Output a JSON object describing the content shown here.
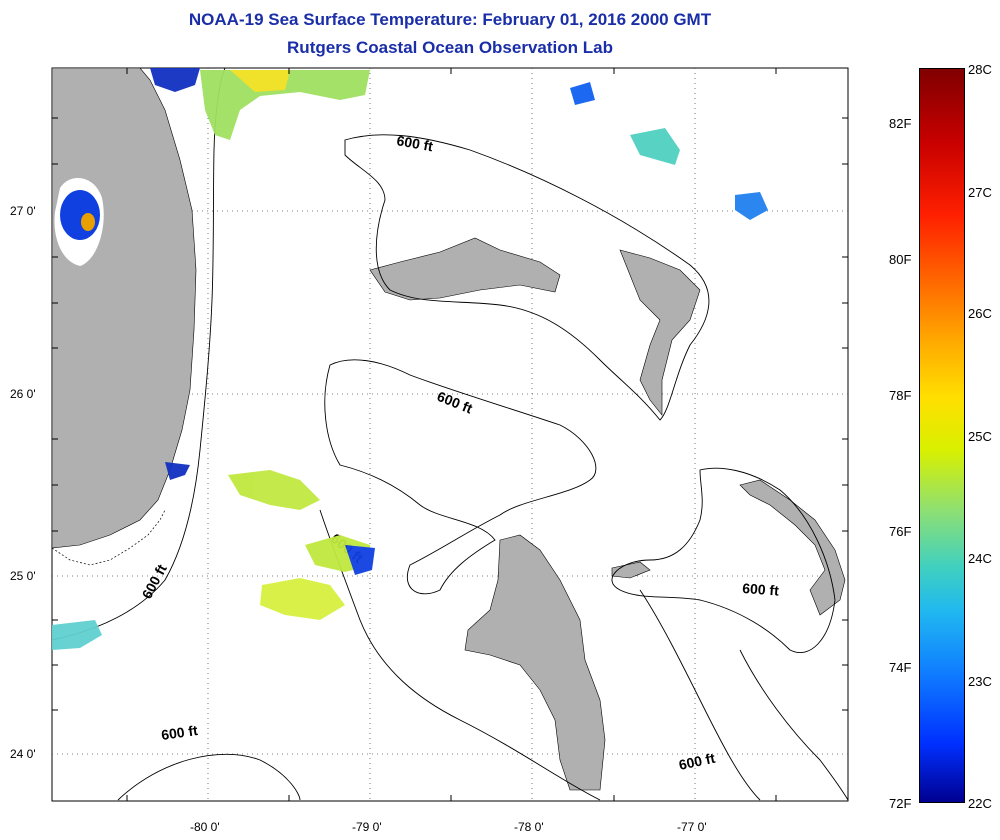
{
  "title": {
    "line1": "NOAA-19 Sea Surface Temperature:  February 01, 2016 2000 GMT",
    "line2": "Rutgers Coastal Ocean Observation Lab"
  },
  "map": {
    "x_ticks": [
      "-80 0'",
      "-79 0'",
      "-78 0'",
      "-77 0'"
    ],
    "y_ticks": [
      "27 0'",
      "26 0'",
      "25 0'",
      "24 0'"
    ],
    "contour_label": "600 ft",
    "land_color": "#b0b0b0",
    "water_color": "#ffffff"
  },
  "colorbar": {
    "celsius": [
      "28C",
      "27C",
      "26C",
      "25C",
      "24C",
      "23C",
      "22C"
    ],
    "fahrenheit": [
      "82F",
      "80F",
      "78F",
      "76F",
      "74F",
      "72F"
    ],
    "top_color": "#800000",
    "bottom_color": "#000090"
  }
}
